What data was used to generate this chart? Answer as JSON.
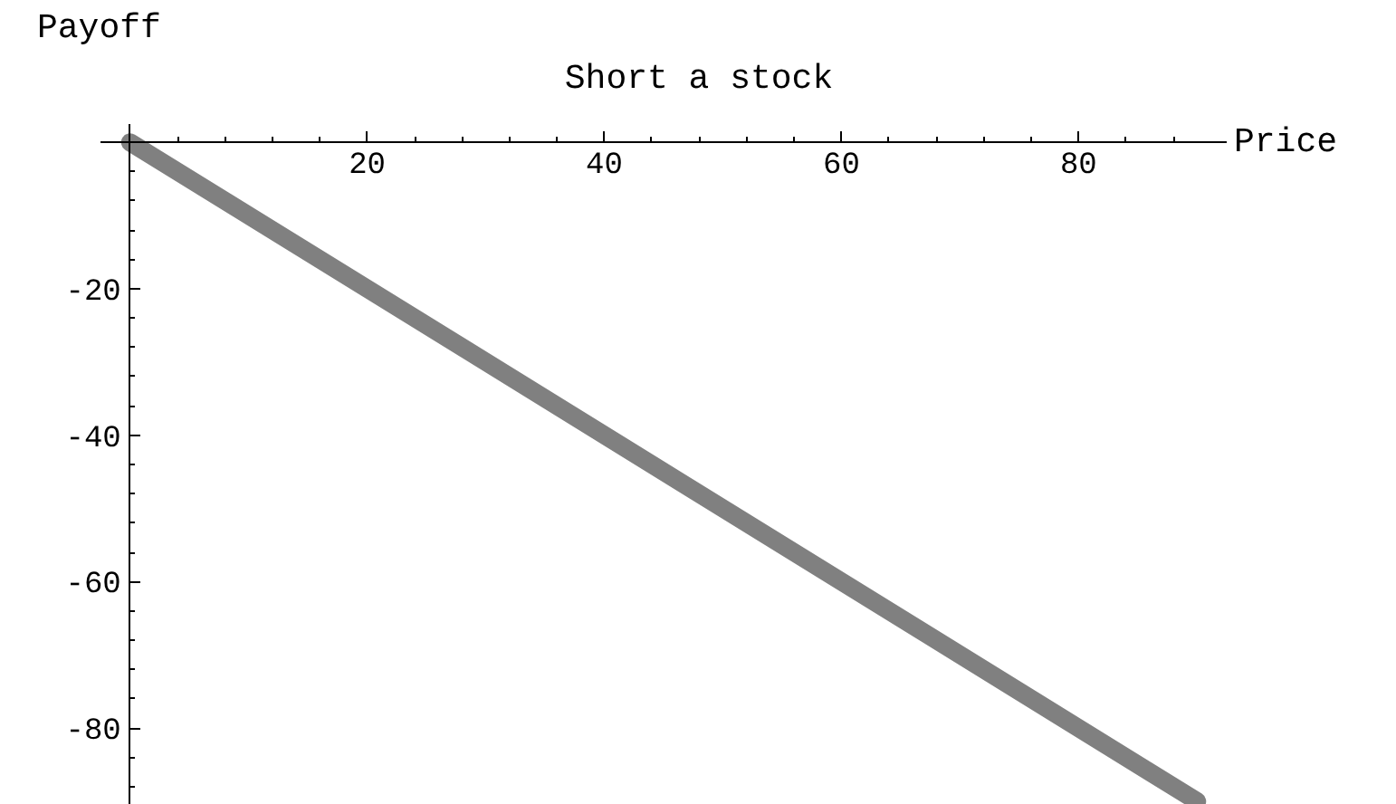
{
  "chart_data": {
    "type": "line",
    "title": "Short a stock",
    "xlabel": "Price",
    "ylabel": "Payoff",
    "x": [
      0,
      90
    ],
    "series": [
      {
        "color": "#808080",
        "values": [
          0,
          -90
        ]
      }
    ],
    "xlim": [
      -2.5,
      92.5
    ],
    "ylim": [
      -90.5,
      2.5
    ],
    "xticks": [
      {
        "value": 0,
        "label": null
      },
      {
        "value": 4,
        "label": null
      },
      {
        "value": 8,
        "label": null
      },
      {
        "value": 12,
        "label": null
      },
      {
        "value": 16,
        "label": null
      },
      20,
      {
        "value": 24,
        "label": null
      },
      {
        "value": 28,
        "label": null
      },
      {
        "value": 32,
        "label": null
      },
      {
        "value": 36,
        "label": null
      },
      40,
      {
        "value": 44,
        "label": null
      },
      {
        "value": 48,
        "label": null
      },
      {
        "value": 52,
        "label": null
      },
      {
        "value": 56,
        "label": null
      },
      60,
      {
        "value": 64,
        "label": null
      },
      {
        "value": 68,
        "label": null
      },
      {
        "value": 72,
        "label": null
      },
      {
        "value": 76,
        "label": null
      },
      80,
      {
        "value": 84,
        "label": null
      },
      {
        "value": 88,
        "label": null
      }
    ],
    "yticks": [
      {
        "value": -4,
        "label": null
      },
      {
        "value": -8,
        "label": null
      },
      {
        "value": -12,
        "label": null
      },
      {
        "value": -16,
        "label": null
      },
      -20,
      {
        "value": -24,
        "label": null
      },
      {
        "value": -28,
        "label": null
      },
      {
        "value": -32,
        "label": null
      },
      {
        "value": -36,
        "label": null
      },
      -40,
      {
        "value": -44,
        "label": null
      },
      {
        "value": -48,
        "label": null
      },
      {
        "value": -52,
        "label": null
      },
      {
        "value": -56,
        "label": null
      },
      -60,
      {
        "value": -64,
        "label": null
      },
      {
        "value": -68,
        "label": null
      },
      {
        "value": -72,
        "label": null
      },
      {
        "value": -76,
        "label": null
      },
      -80,
      {
        "value": -84,
        "label": null
      },
      {
        "value": -88,
        "label": null
      }
    ],
    "grid": false,
    "line_style": "solid"
  }
}
